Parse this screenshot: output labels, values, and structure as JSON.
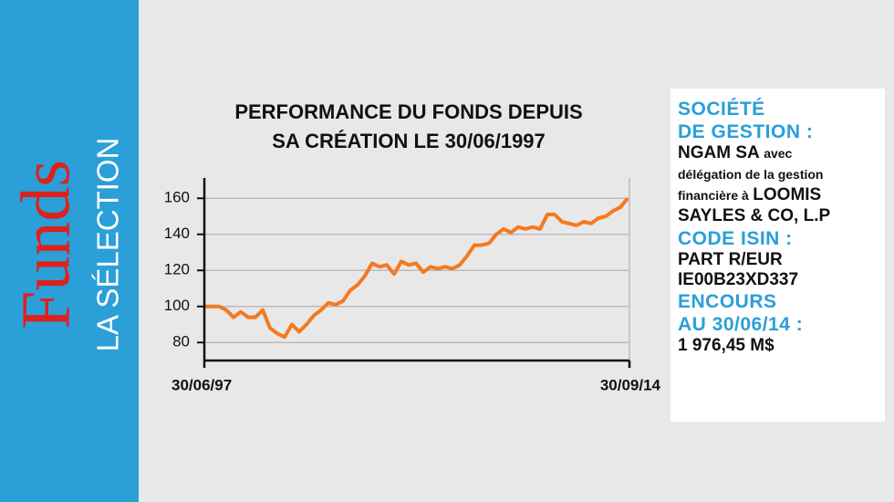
{
  "sidebar": {
    "brand": "Funds",
    "subtitle": "LA SÉLECTION"
  },
  "chart_data": {
    "type": "line",
    "title": [
      "PERFORMANCE DU FONDS DEPUIS",
      "SA CRÉATION LE 30/06/1997"
    ],
    "categories": [
      "30/06/97",
      null,
      null,
      null,
      null,
      null,
      null,
      null,
      null,
      null,
      null,
      null,
      null,
      null,
      null,
      null,
      null,
      null,
      null,
      null,
      null,
      null,
      null,
      null,
      null,
      null,
      null,
      null,
      null,
      null,
      null,
      null,
      null,
      null,
      null,
      null,
      null,
      null,
      null,
      null,
      null,
      null,
      null,
      null,
      null,
      null,
      null,
      null,
      null,
      null,
      null,
      null,
      null,
      null,
      null,
      null,
      null,
      null,
      "30/09/14"
    ],
    "values": [
      100,
      100,
      100,
      98,
      94,
      97,
      94,
      94,
      98,
      88,
      85,
      83,
      90,
      86,
      90,
      95,
      98,
      102,
      101,
      103,
      109,
      112,
      117,
      124,
      122,
      123,
      118,
      125,
      123,
      124,
      119,
      122,
      121,
      122,
      121,
      123,
      128,
      134,
      134,
      135,
      140,
      143,
      141,
      144,
      143,
      144,
      143,
      151,
      151,
      147,
      146,
      145,
      147,
      146,
      149,
      150,
      153,
      155,
      160
    ],
    "color": "#f47920",
    "ylim": [
      70,
      170
    ],
    "yticks": [
      80,
      100,
      120,
      140,
      160
    ],
    "grid": true
  },
  "info": {
    "management_label": [
      "SOCIÉTÉ",
      "DE GESTION :"
    ],
    "management": [
      [
        "NGAM SA",
        "avec"
      ],
      [
        "délégation de la gestion"
      ],
      [
        "financière à",
        "LOOMIS"
      ],
      [
        "SAYLES & CO, L.P"
      ]
    ],
    "isin_label": "CODE ISIN :",
    "isin": [
      "PART R/EUR",
      "IE00B23XD337"
    ],
    "aum_label": [
      "ENCOURS",
      "AU 30/06/14 :"
    ],
    "aum": "1 976,45 M$"
  }
}
